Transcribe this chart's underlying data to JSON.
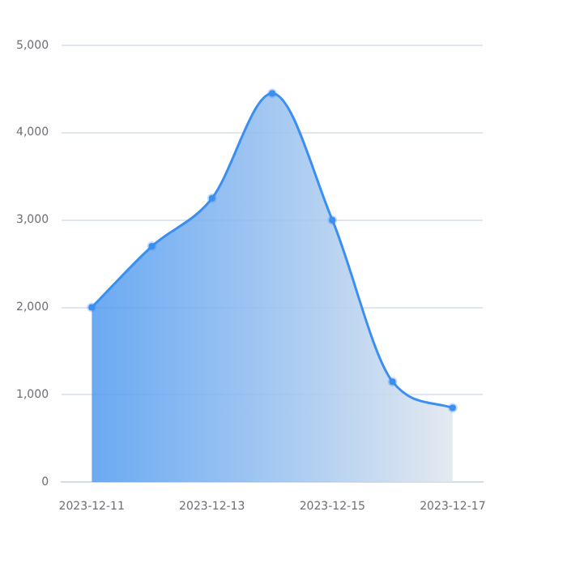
{
  "chart_data": {
    "type": "area",
    "categories": [
      "2023-12-11",
      null,
      "2023-12-13",
      null,
      "2023-12-15",
      null,
      "2023-12-17"
    ],
    "series": [
      {
        "color": "#3b8ff0",
        "values": [
          2000,
          2700,
          3250,
          4450,
          3000,
          1150,
          850
        ]
      }
    ],
    "ylim": [
      0,
      5000
    ],
    "yticks": [
      {
        "value": 0,
        "label": "0"
      },
      {
        "value": 1000,
        "label": "1,000"
      },
      {
        "value": 2000,
        "label": "2,000"
      },
      {
        "value": 3000,
        "label": "3,000"
      },
      {
        "value": 4000,
        "label": "4,000"
      },
      {
        "value": 5000,
        "label": "5,000"
      }
    ],
    "grid": "y",
    "legend": false,
    "marker": "circle",
    "line_style": "solid"
  }
}
